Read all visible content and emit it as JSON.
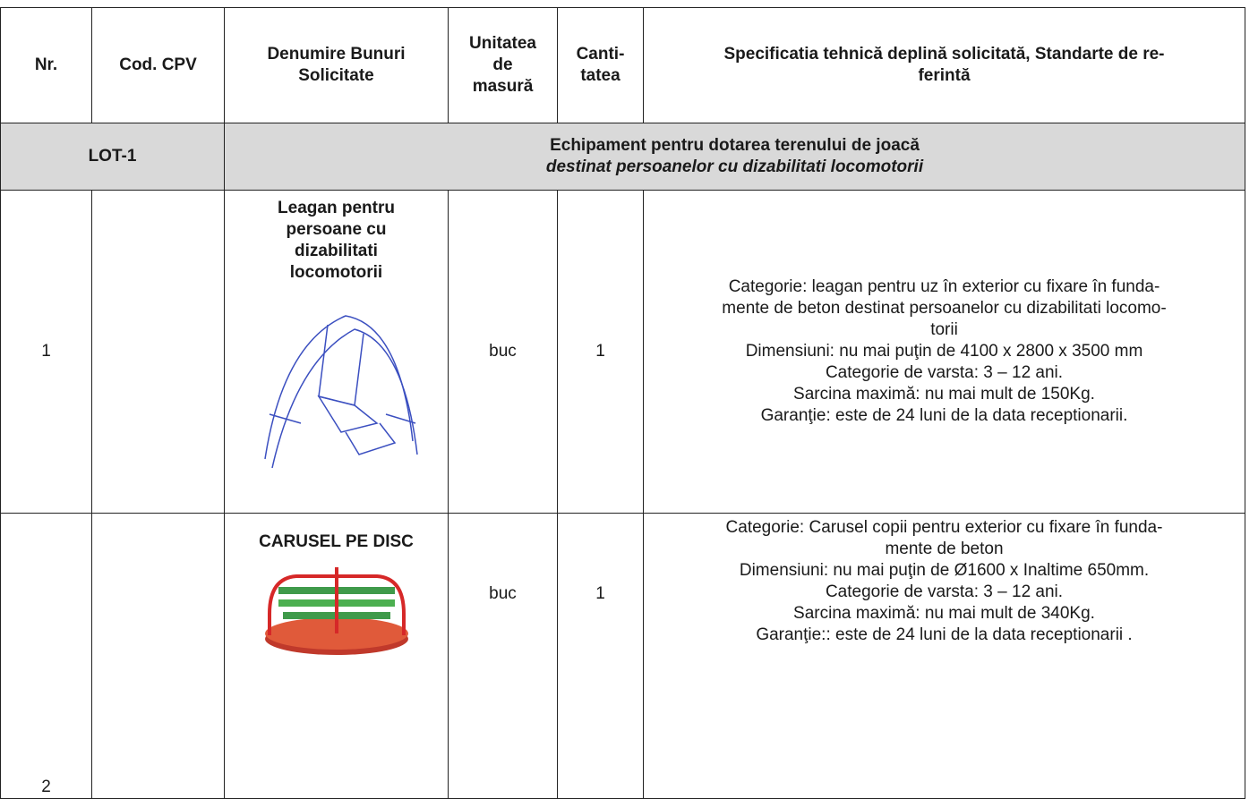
{
  "table": {
    "header": [
      [
        "Nr."
      ],
      [
        "Cod. CPV"
      ],
      [
        "Denumire Bunuri",
        "Solicitate"
      ],
      [
        "Unitatea",
        "de",
        "masură"
      ],
      [
        "Canti-",
        "tatea"
      ],
      [
        "Specificatia tehnică deplină solicitată, Standarte de re-",
        "ferintă"
      ]
    ],
    "lot": {
      "label": "LOT-1",
      "title": "Echipament pentru dotarea terenului  de joacă",
      "subtitle": "destinat persoanelor cu dizabilitati locomotorii"
    },
    "rows": [
      {
        "nr": 1,
        "name": [
          "Leagan pentru",
          "persoane cu",
          "dizabilitati",
          "locomotorii"
        ],
        "unit": "buc",
        "qty": 1,
        "spec": [
          "Categorie: leagan  pentru uz în exterior cu fixare în funda-",
          "mente de beton destinat persoanelor cu dizabilitati locomo-",
          "torii",
          "Dimensiuni: nu mai puţin de 4100 x 2800 x 3500 mm",
          "Categorie de varsta: 3 – 12 ani.",
          "Sarcina maximă: nu mai mult de 150Kg.",
          "Garanţie: este de 24 luni de la data receptionarii."
        ]
      },
      {
        "nr": 2,
        "name": [
          "CARUSEL PE DISC"
        ],
        "unit": "buc",
        "qty": 1,
        "spec": [
          "Categorie: Carusel  copii pentru exterior cu fixare în funda-",
          "mente de beton",
          "Dimensiuni:  nu mai puţin de Ø1600 x Inaltime 650mm.",
          "Categorie de varsta: 3 – 12 ani.",
          "Sarcina maximă: nu mai mult de 340Kg.",
          "Garanţie:: este de 24 luni de la data receptionarii ."
        ]
      }
    ]
  }
}
